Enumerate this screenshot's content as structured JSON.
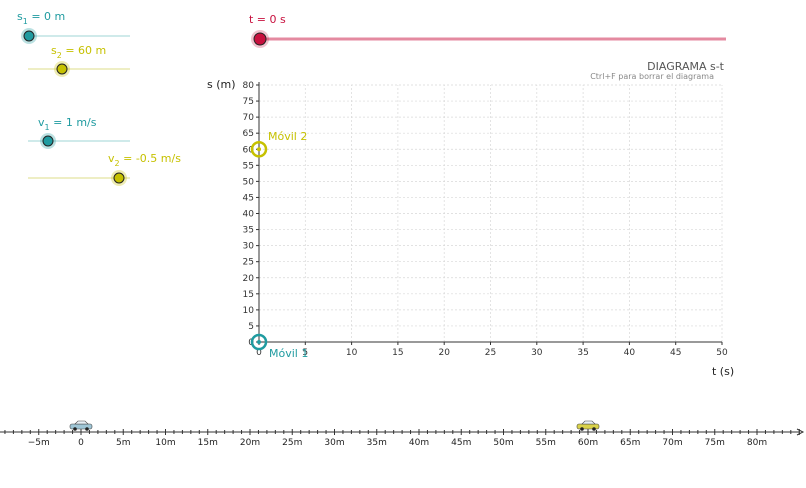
{
  "sliders": {
    "s1": {
      "label": "s",
      "sub": "1",
      "value": "0",
      "unit": "m",
      "color": "#1f9ba0"
    },
    "s2": {
      "label": "s",
      "sub": "2",
      "value": "60",
      "unit": "m",
      "color": "#c6c100"
    },
    "v1": {
      "label": "v",
      "sub": "1",
      "value": "1",
      "unit": "m/s",
      "color": "#1f9ba0"
    },
    "v2": {
      "label": "v",
      "sub": "2",
      "value": "-0.5",
      "unit": "m/s",
      "color": "#c6c100"
    }
  },
  "time_slider": {
    "text": "t = 0 s",
    "color": "#c8103e",
    "track_color": "#e48aa0"
  },
  "diagram": {
    "title": "DIAGRAMA s-t",
    "hint": "Ctrl+F para borrar el diagrama",
    "ylabel": "s (m)",
    "xlabel": "t (s)",
    "mobile1": "Móvil 1",
    "mobile2": "Móvil 2"
  },
  "chart_data": {
    "type": "scatter",
    "title": "DIAGRAMA s-t",
    "xlabel": "t (s)",
    "ylabel": "s (m)",
    "xlim": [
      0,
      50
    ],
    "ylim": [
      0,
      80
    ],
    "xticks": [
      0,
      5,
      10,
      15,
      20,
      25,
      30,
      35,
      40,
      45,
      50
    ],
    "yticks": [
      0,
      5,
      10,
      15,
      20,
      25,
      30,
      35,
      40,
      45,
      50,
      55,
      60,
      65,
      70,
      75,
      80
    ],
    "grid": true,
    "series": [
      {
        "name": "Móvil 1",
        "x": [
          0
        ],
        "y": [
          0
        ],
        "color": "#1f9ba0"
      },
      {
        "name": "Móvil 2",
        "x": [
          0
        ],
        "y": [
          60
        ],
        "color": "#c6c100"
      }
    ]
  },
  "track": {
    "ticks": [
      "−5m",
      "0",
      "5m",
      "10m",
      "15m",
      "20m",
      "25m",
      "30m",
      "35m",
      "40m",
      "45m",
      "50m",
      "55m",
      "60m",
      "65m",
      "70m",
      "75m",
      "80m"
    ],
    "car1_position": 0,
    "car2_position": 60
  }
}
